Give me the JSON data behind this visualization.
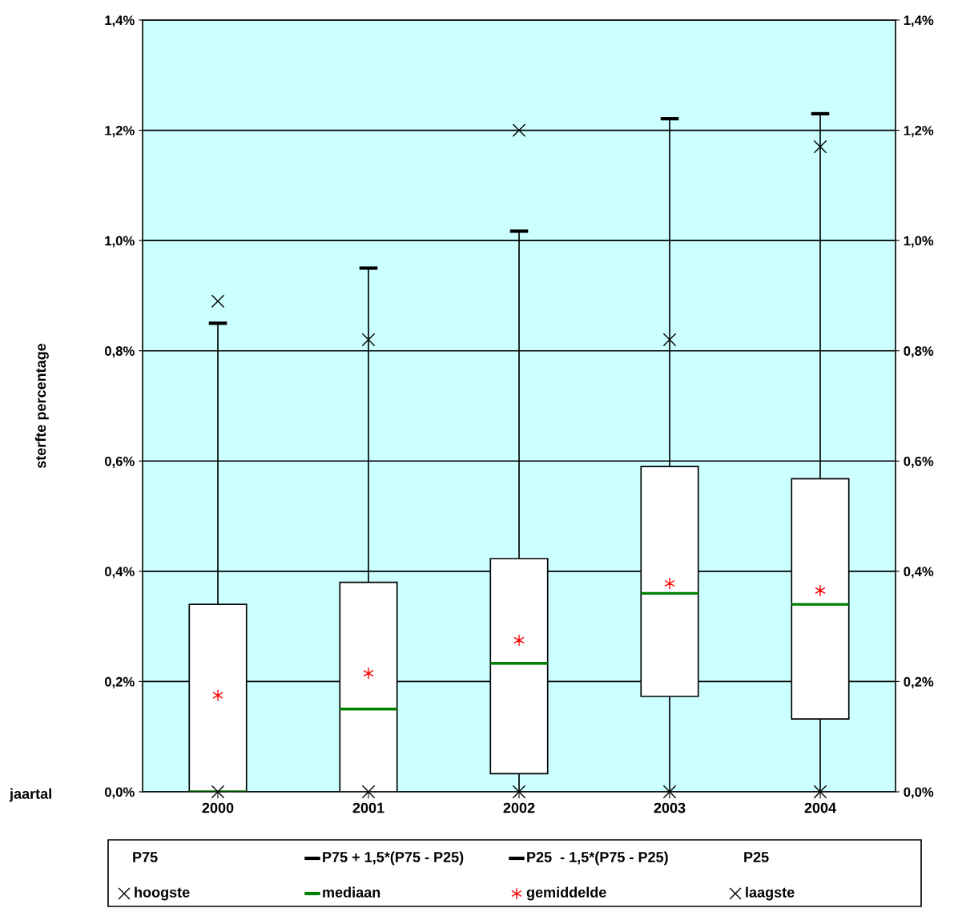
{
  "chart_data": {
    "type": "box",
    "ylabel": "sterfte percentage",
    "xlabel": "jaartal",
    "categories": [
      "2000",
      "2001",
      "2002",
      "2003",
      "2004"
    ],
    "boxes": [
      {
        "low": 0,
        "q1": 0,
        "median": 0,
        "q3": 0.34,
        "high": 0.85,
        "mean": 0.175
      },
      {
        "low": 0,
        "q1": 0,
        "median": 0.15,
        "q3": 0.38,
        "high": 0.95,
        "mean": 0.215
      },
      {
        "low": 0,
        "q1": 0.033,
        "median": 0.233,
        "q3": 0.423,
        "high": 1.017,
        "mean": 0.275
      },
      {
        "low": 0,
        "q1": 0.173,
        "median": 0.36,
        "q3": 0.59,
        "high": 1.221,
        "mean": 0.378
      },
      {
        "low": 0,
        "q1": 0.132,
        "median": 0.34,
        "q3": 0.568,
        "high": 1.23,
        "mean": 0.365
      }
    ],
    "series": [
      {
        "name": "hoogste",
        "type": "scatter",
        "marker": "cross",
        "color": "#000000",
        "values": [
          0.89,
          0.82,
          1.2,
          0.82,
          1.17
        ]
      },
      {
        "name": "laagste",
        "type": "scatter",
        "marker": "cross",
        "color": "#000000",
        "values": [
          0,
          0,
          0,
          0,
          0
        ]
      }
    ],
    "annotations": [
      "P75",
      "P75 + 1,5*(P75 - P25)",
      "P25  - 1,5*(P75 - P25)",
      "P25",
      "mediaan",
      "gemiddelde"
    ],
    "ylim": [
      0,
      1.4
    ],
    "yticks": [
      {
        "value": 0,
        "label": "0,0%"
      },
      {
        "value": 0.2,
        "label": "0,2%"
      },
      {
        "value": 0.4,
        "label": "0,4%"
      },
      {
        "value": 0.6,
        "label": "0,6%"
      },
      {
        "value": 0.8,
        "label": "0,8%"
      },
      {
        "value": 1.0,
        "label": "1,0%"
      },
      {
        "value": 1.2,
        "label": "1,2%"
      },
      {
        "value": 1.4,
        "label": "1,4%"
      }
    ],
    "y2lim": [
      0,
      1.4
    ],
    "y2ticks": [
      {
        "value": 0,
        "label": "0,0%"
      },
      {
        "value": 0.2,
        "label": "0,2%"
      },
      {
        "value": 0.4,
        "label": "0,4%"
      },
      {
        "value": 0.6,
        "label": "0,6%"
      },
      {
        "value": 0.8,
        "label": "0,8%"
      },
      {
        "value": 1.0,
        "label": "1,0%"
      },
      {
        "value": 1.2,
        "label": "1,2%"
      },
      {
        "value": 1.4,
        "label": "1,4%"
      }
    ],
    "grid": "y",
    "legend": "bottom"
  }
}
